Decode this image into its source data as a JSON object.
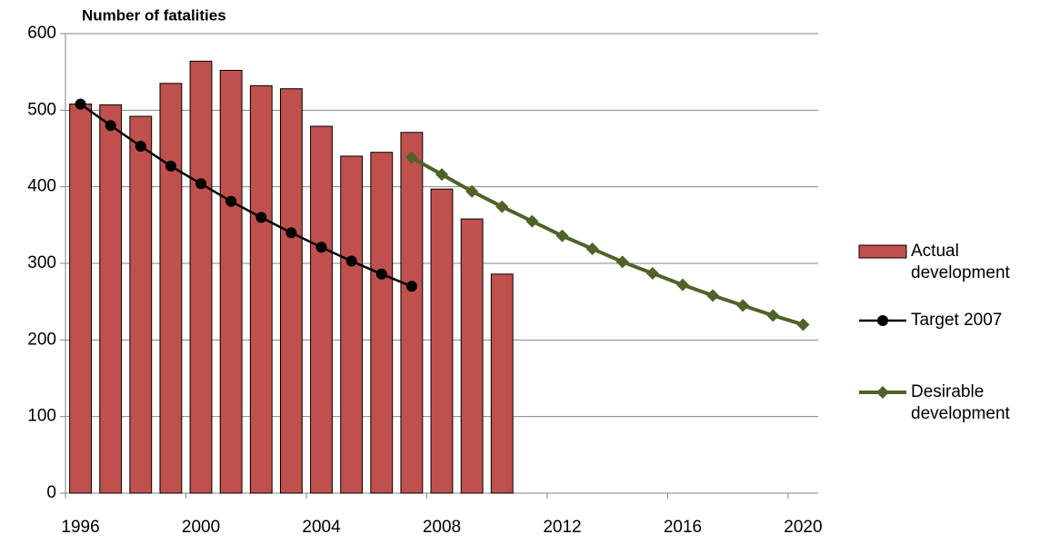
{
  "chart_data": {
    "type": "bar",
    "y_label": "Number of fatalities",
    "categories": [
      "1996",
      null,
      null,
      null,
      "2000",
      null,
      null,
      null,
      "2004",
      null,
      null,
      null,
      "2008",
      null,
      null,
      null,
      "2012",
      null,
      null,
      null,
      "2016",
      null,
      null,
      null,
      "2020"
    ],
    "ylim": [
      0,
      600
    ],
    "yticks": [
      0,
      100,
      200,
      300,
      400,
      500,
      600
    ],
    "grid": true,
    "legend": "right",
    "series": [
      {
        "name": "Actual development",
        "type": "bar",
        "color": "#c0504d",
        "values": [
          508,
          507,
          492,
          535,
          564,
          552,
          532,
          528,
          479,
          440,
          445,
          471,
          397,
          358,
          286,
          null,
          null,
          null,
          null,
          null,
          null,
          null,
          null,
          null,
          null
        ]
      },
      {
        "name": "Target 2007",
        "type": "line",
        "marker": "circle",
        "color": "#000000",
        "values": [
          508,
          480,
          453,
          427,
          404,
          381,
          360,
          340,
          321,
          303,
          286,
          270,
          null,
          null,
          null,
          null,
          null,
          null,
          null,
          null,
          null,
          null,
          null,
          null,
          null
        ]
      },
      {
        "name": "Desirable development",
        "type": "line",
        "marker": "diamond",
        "color": "#4f6228",
        "values": [
          null,
          null,
          null,
          null,
          null,
          null,
          null,
          null,
          null,
          null,
          null,
          438,
          416,
          394,
          374,
          355,
          336,
          319,
          302,
          287,
          272,
          258,
          245,
          232,
          220
        ]
      }
    ]
  }
}
